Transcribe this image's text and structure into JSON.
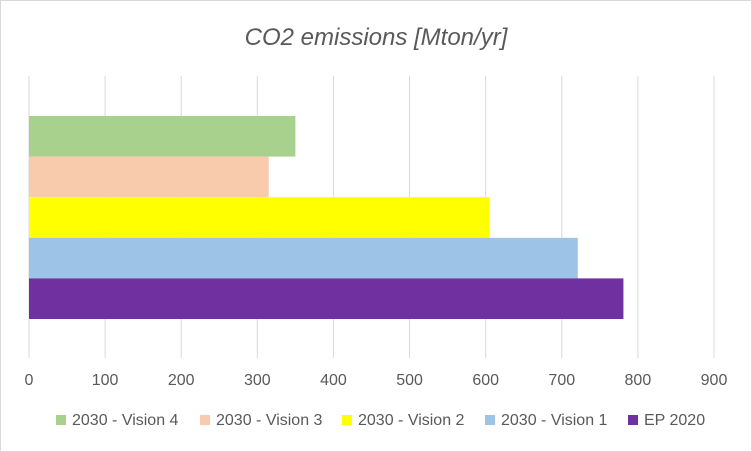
{
  "chart_data": {
    "type": "bar",
    "orientation": "horizontal",
    "title": "CO2 emissions [Mton/yr]",
    "xlabel": "",
    "ylabel": "",
    "xlim": [
      0,
      900
    ],
    "x_ticks": [
      0,
      100,
      200,
      300,
      400,
      500,
      600,
      700,
      800,
      900
    ],
    "grid": "vertical",
    "legend_position": "bottom",
    "series": [
      {
        "name": "2030 - Vision 4",
        "value": 350,
        "color": "#a9d18e"
      },
      {
        "name": "2030 - Vision 3",
        "value": 315,
        "color": "#f8cbad"
      },
      {
        "name": "2030 - Vision 2",
        "value": 605,
        "color": "#ffff00"
      },
      {
        "name": "2030 - Vision 1",
        "value": 721,
        "color": "#9dc3e6"
      },
      {
        "name": "EP 2020",
        "value": 781,
        "color": "#7030a0"
      }
    ]
  }
}
